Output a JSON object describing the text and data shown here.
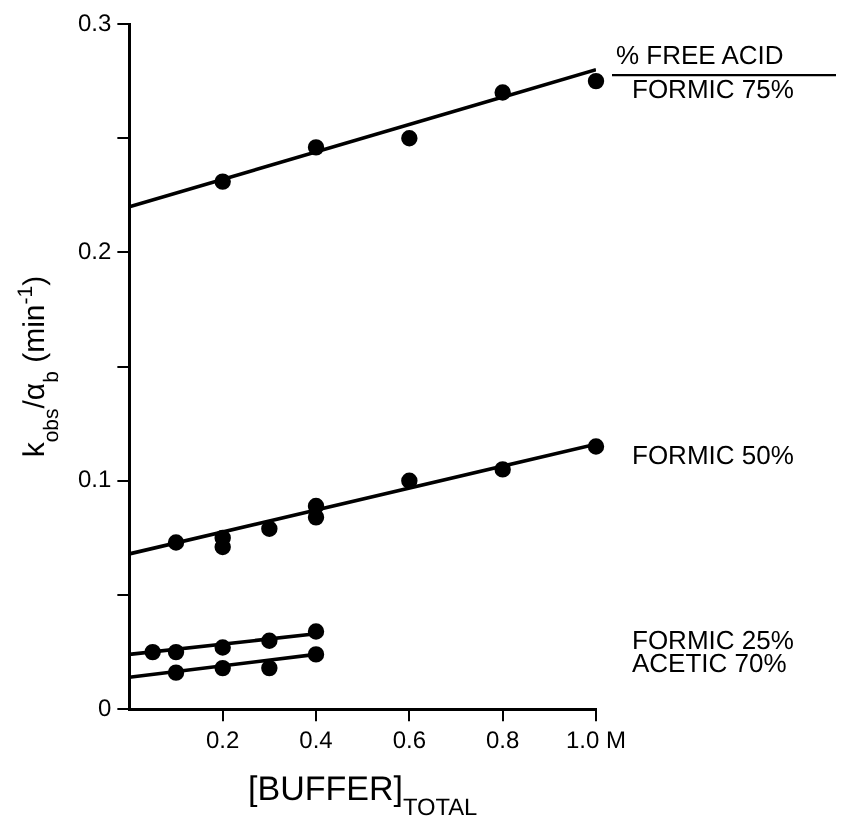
{
  "chart_data": {
    "type": "scatter",
    "xlabel": "[BUFFER]$_{TOTAL}$",
    "ylabel": "k$_{obs}$/α$_{b}$ (min$^{-1}$)",
    "legend_title": "% FREE ACID",
    "marker": "circle",
    "xlim": [
      0,
      1
    ],
    "xticks": [
      0.2,
      0.4,
      0.6,
      0.8,
      {
        "value": 1,
        "label": "1.0 M"
      }
    ],
    "ylim": [
      0,
      0.3
    ],
    "yticks": [
      0,
      {
        "value": 0.05,
        "label": null
      },
      0.1,
      {
        "value": 0.15,
        "label": null
      },
      0.2,
      {
        "value": 0.25,
        "label": null
      },
      0.3
    ],
    "series": [
      {
        "name": "FORMIC 75%",
        "color": "#000000",
        "x": [
          0.2,
          0.4,
          0.6,
          0.8,
          1.0
        ],
        "values": [
          0.231,
          0.246,
          0.25,
          0.27,
          0.275
        ]
      },
      {
        "type": "line",
        "marker": "none",
        "color": "#000000",
        "x": [
          0,
          1
        ],
        "values": [
          0.22,
          0.28
        ]
      },
      {
        "name": "FORMIC 50%",
        "color": "#000000",
        "x": [
          0.1,
          0.2,
          0.2,
          0.3,
          0.4,
          0.4,
          0.6,
          0.8,
          1.0
        ],
        "values": [
          0.073,
          0.075,
          0.071,
          0.079,
          0.089,
          0.084,
          0.1,
          0.105,
          0.115
        ]
      },
      {
        "type": "line",
        "marker": "none",
        "color": "#000000",
        "x": [
          0,
          1
        ],
        "values": [
          0.068,
          0.116
        ]
      },
      {
        "name": "FORMIC 25%",
        "color": "#000000",
        "x": [
          0.05,
          0.1,
          0.2,
          0.3,
          0.4
        ],
        "values": [
          0.025,
          0.025,
          0.027,
          0.03,
          0.034
        ]
      },
      {
        "type": "line",
        "marker": "none",
        "color": "#000000",
        "x": [
          0,
          0.4
        ],
        "values": [
          0.024,
          0.033
        ]
      },
      {
        "name": "ACETIC 70%",
        "color": "#000000",
        "x": [
          0.1,
          0.2,
          0.3,
          0.4
        ],
        "values": [
          0.016,
          0.018,
          0.018,
          0.024
        ]
      },
      {
        "type": "line",
        "marker": "none",
        "color": "#000000",
        "x": [
          0,
          0.4
        ],
        "values": [
          0.014,
          0.024
        ]
      }
    ]
  }
}
